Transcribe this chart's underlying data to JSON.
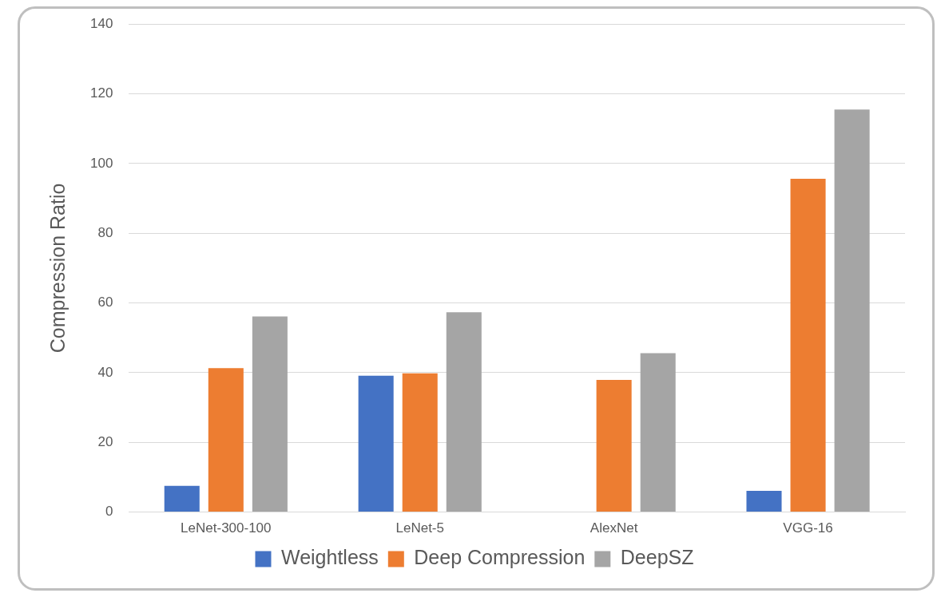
{
  "chart_data": {
    "type": "bar",
    "ylabel": "Compression Ratio",
    "categories": [
      "LeNet-300-100",
      "LeNet-5",
      "AlexNet",
      "VGG-16"
    ],
    "series": [
      {
        "name": "Weightless",
        "color": "#4472c4",
        "values": [
          7.5,
          39.1,
          null,
          6.1
        ]
      },
      {
        "name": "Deep Compression",
        "color": "#ed7d31",
        "values": [
          41.3,
          39.8,
          37.9,
          95.6
        ]
      },
      {
        "name": "DeepSZ",
        "color": "#a5a5a5",
        "values": [
          56.1,
          57.3,
          45.6,
          115.5
        ]
      }
    ],
    "ylim": [
      0,
      140
    ],
    "yticks": [
      0,
      20,
      40,
      60,
      80,
      100,
      120,
      140
    ],
    "grid": "y",
    "legend": "bottom"
  }
}
